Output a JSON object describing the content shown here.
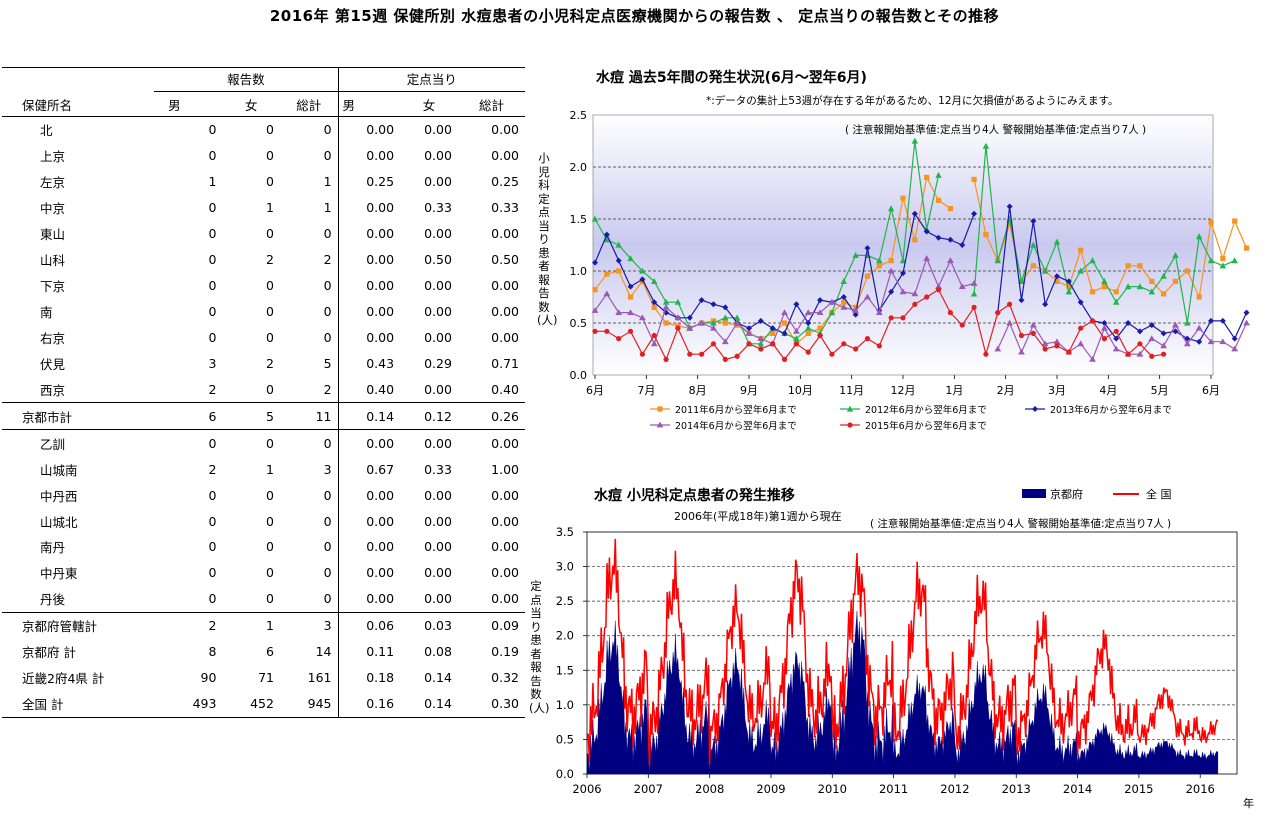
{
  "title": "2016年 第15週 保健所別 水痘患者の小児科定点医療機関からの報告数 、 定点当りの報告数とその推移",
  "table": {
    "group_reports": "報告数",
    "group_per_site": "定点当り",
    "col_name": "保健所名",
    "col_male": "男",
    "col_female": "女",
    "col_total": "総計",
    "col_male2": "男",
    "col_female2": "女",
    "col_total2": "総計",
    "rows": [
      {
        "name": "北",
        "m": "0",
        "f": "0",
        "t": "0",
        "pm": "0.00",
        "pf": "0.00",
        "pt": "0.00",
        "style": "indent"
      },
      {
        "name": "上京",
        "m": "0",
        "f": "0",
        "t": "0",
        "pm": "0.00",
        "pf": "0.00",
        "pt": "0.00",
        "style": "indent"
      },
      {
        "name": "左京",
        "m": "1",
        "f": "0",
        "t": "1",
        "pm": "0.25",
        "pf": "0.00",
        "pt": "0.25",
        "style": "indent"
      },
      {
        "name": "中京",
        "m": "0",
        "f": "1",
        "t": "1",
        "pm": "0.00",
        "pf": "0.33",
        "pt": "0.33",
        "style": "indent"
      },
      {
        "name": "東山",
        "m": "0",
        "f": "0",
        "t": "0",
        "pm": "0.00",
        "pf": "0.00",
        "pt": "0.00",
        "style": "indent"
      },
      {
        "name": "山科",
        "m": "0",
        "f": "2",
        "t": "2",
        "pm": "0.00",
        "pf": "0.50",
        "pt": "0.50",
        "style": "indent"
      },
      {
        "name": "下京",
        "m": "0",
        "f": "0",
        "t": "0",
        "pm": "0.00",
        "pf": "0.00",
        "pt": "0.00",
        "style": "indent"
      },
      {
        "name": "南",
        "m": "0",
        "f": "0",
        "t": "0",
        "pm": "0.00",
        "pf": "0.00",
        "pt": "0.00",
        "style": "indent"
      },
      {
        "name": "右京",
        "m": "0",
        "f": "0",
        "t": "0",
        "pm": "0.00",
        "pf": "0.00",
        "pt": "0.00",
        "style": "indent"
      },
      {
        "name": "伏見",
        "m": "3",
        "f": "2",
        "t": "5",
        "pm": "0.43",
        "pf": "0.29",
        "pt": "0.71",
        "style": "indent"
      },
      {
        "name": "西京",
        "m": "2",
        "f": "0",
        "t": "2",
        "pm": "0.40",
        "pf": "0.00",
        "pt": "0.40",
        "style": "indent"
      },
      {
        "name": "京都市計",
        "m": "6",
        "f": "5",
        "t": "11",
        "pm": "0.14",
        "pf": "0.12",
        "pt": "0.26",
        "style": "subtotal"
      },
      {
        "name": "乙訓",
        "m": "0",
        "f": "0",
        "t": "0",
        "pm": "0.00",
        "pf": "0.00",
        "pt": "0.00",
        "style": "indent"
      },
      {
        "name": "山城南",
        "m": "2",
        "f": "1",
        "t": "3",
        "pm": "0.67",
        "pf": "0.33",
        "pt": "1.00",
        "style": "indent"
      },
      {
        "name": "中丹西",
        "m": "0",
        "f": "0",
        "t": "0",
        "pm": "0.00",
        "pf": "0.00",
        "pt": "0.00",
        "style": "indent"
      },
      {
        "name": "山城北",
        "m": "0",
        "f": "0",
        "t": "0",
        "pm": "0.00",
        "pf": "0.00",
        "pt": "0.00",
        "style": "indent"
      },
      {
        "name": "南丹",
        "m": "0",
        "f": "0",
        "t": "0",
        "pm": "0.00",
        "pf": "0.00",
        "pt": "0.00",
        "style": "indent"
      },
      {
        "name": "中丹東",
        "m": "0",
        "f": "0",
        "t": "0",
        "pm": "0.00",
        "pf": "0.00",
        "pt": "0.00",
        "style": "indent"
      },
      {
        "name": "丹後",
        "m": "0",
        "f": "0",
        "t": "0",
        "pm": "0.00",
        "pf": "0.00",
        "pt": "0.00",
        "style": "indent"
      },
      {
        "name": "京都府管轄計",
        "m": "2",
        "f": "1",
        "t": "3",
        "pm": "0.06",
        "pf": "0.03",
        "pt": "0.09",
        "style": "subtotal"
      },
      {
        "name": "京都府  計",
        "m": "8",
        "f": "6",
        "t": "14",
        "pm": "0.11",
        "pf": "0.08",
        "pt": "0.19",
        "style": "total"
      },
      {
        "name": "近畿2府4県  計",
        "m": "90",
        "f": "71",
        "t": "161",
        "pm": "0.18",
        "pf": "0.14",
        "pt": "0.32",
        "style": "total"
      },
      {
        "name": "全国  計",
        "m": "493",
        "f": "452",
        "t": "945",
        "pm": "0.16",
        "pf": "0.14",
        "pt": "0.30",
        "style": "last"
      }
    ]
  },
  "chart1": {
    "title": "水痘  過去5年間の発生状況(6月～翌年6月)",
    "note": "*:データの集計上53週が存在する年があるため、12月に欠損値があるようにみえます。",
    "thresholds": "( 注意報開始基準値:定点当り4人    警報開始基準値:定点当り7人 )",
    "ylabel": "小児科定点当り患者報告数(人)",
    "yticks": [
      "0.0",
      "0.5",
      "1.0",
      "1.5",
      "2.0",
      "2.5"
    ],
    "xticks": [
      "6月",
      "7月",
      "8月",
      "9月",
      "10月",
      "11月",
      "12月",
      "1月",
      "2月",
      "3月",
      "4月",
      "5月",
      "6月"
    ],
    "legend": [
      "2011年6月から翌年6月まで",
      "2012年6月から翌年6月まで",
      "2013年6月から翌年6月まで",
      "2014年6月から翌年6月まで",
      "2015年6月から翌年6月まで"
    ]
  },
  "chart2": {
    "title": "水痘  小児科定点患者の発生推移",
    "subtitle": "2006年(平成18年)第1週から現在",
    "thresholds": "( 注意報開始基準値:定点当り4人    警報開始基準値:定点当り7人 )",
    "legend_kyoto": "京都府",
    "legend_national": "全  国",
    "ylabel": "定点当り患者報告数(人)",
    "yticks": [
      "0.0",
      "0.5",
      "1.0",
      "1.5",
      "2.0",
      "2.5",
      "3.0",
      "3.5"
    ],
    "xticks": [
      "2006",
      "2007",
      "2008",
      "2009",
      "2010",
      "2011",
      "2012",
      "2013",
      "2014",
      "2015",
      "2016"
    ],
    "xunit": "年"
  },
  "colors": {
    "c2011": "#f7931e",
    "c2012": "#1fb54a",
    "c2013": "#1a1aa8",
    "c2014": "#9b59b6",
    "c2015": "#e02020",
    "kyoto": "#000080",
    "national": "#ff0000"
  },
  "chart_data": [
    {
      "type": "line",
      "title": "水痘  過去5年間の発生状況(6月～翌年6月)",
      "ylabel": "小児科定点当り患者報告数(人)",
      "ylim": [
        0,
        2.5
      ],
      "x_label": "week (6月 start, 53 points)",
      "grid": true,
      "series": [
        {
          "name": "2011年6月から翌年6月まで",
          "values": [
            0.82,
            0.97,
            1.0,
            0.75,
            0.9,
            0.65,
            0.5,
            0.47,
            0.45,
            0.5,
            0.52,
            0.5,
            0.48,
            0.4,
            0.35,
            0.4,
            0.5,
            0.3,
            0.4,
            0.45,
            0.6,
            0.7,
            0.65,
            0.95,
            1.05,
            1.1,
            1.7,
            1.3,
            1.9,
            1.68,
            1.6,
            null,
            1.88,
            1.35,
            1.1,
            1.45,
            0.9,
            1.05,
            1.0,
            0.9,
            0.85,
            1.2,
            0.8,
            0.85,
            0.8,
            1.05,
            1.05,
            0.9,
            0.78,
            0.9,
            1.0,
            0.75,
            1.47,
            1.12,
            1.48,
            1.22
          ]
        },
        {
          "name": "2012年6月から翌年6月まで",
          "values": [
            1.5,
            1.3,
            1.25,
            1.12,
            1.0,
            0.9,
            0.7,
            0.7,
            0.45,
            0.5,
            0.5,
            0.55,
            0.55,
            0.3,
            0.3,
            0.45,
            0.4,
            0.35,
            0.45,
            0.4,
            0.6,
            0.9,
            1.15,
            1.15,
            1.1,
            1.6,
            1.1,
            2.25,
            1.4,
            1.92,
            null,
            null,
            0.78,
            2.2,
            1.1,
            1.5,
            0.9,
            1.25,
            1.0,
            1.28,
            0.8,
            1.0,
            1.1,
            0.9,
            0.7,
            0.85,
            0.85,
            0.8,
            0.95,
            1.15,
            0.5,
            1.33,
            1.1,
            1.05,
            1.1
          ]
        },
        {
          "name": "2013年6月から翌年6月まで",
          "values": [
            1.08,
            1.35,
            1.1,
            0.85,
            0.92,
            0.7,
            0.6,
            0.55,
            0.55,
            0.72,
            0.68,
            0.65,
            0.5,
            0.45,
            0.52,
            0.45,
            0.4,
            0.68,
            0.5,
            0.72,
            0.7,
            0.75,
            0.58,
            1.22,
            0.62,
            0.8,
            0.98,
            1.55,
            1.38,
            1.32,
            1.3,
            1.25,
            1.55,
            null,
            0.6,
            1.62,
            0.72,
            1.48,
            0.68,
            0.95,
            0.9,
            0.7,
            0.52,
            0.5,
            0.35,
            0.5,
            0.42,
            0.48,
            0.4,
            0.42,
            0.35,
            0.32,
            0.52,
            0.52,
            0.35,
            0.6
          ]
        },
        {
          "name": "2014年6月から翌年6月まで",
          "values": [
            0.62,
            0.78,
            0.6,
            0.6,
            0.55,
            0.3,
            0.65,
            0.55,
            0.45,
            0.5,
            0.45,
            0.32,
            0.5,
            0.4,
            0.35,
            0.3,
            0.6,
            0.42,
            0.6,
            0.6,
            0.7,
            0.65,
            0.62,
            0.75,
            0.6,
            1.0,
            0.8,
            0.78,
            1.12,
            0.85,
            1.1,
            0.85,
            0.88,
            null,
            0.25,
            0.5,
            0.22,
            0.48,
            0.3,
            0.32,
            0.22,
            0.3,
            0.15,
            0.45,
            0.25,
            0.2,
            0.2,
            0.35,
            0.28,
            0.48,
            0.3,
            0.45,
            0.32,
            0.32,
            0.25,
            0.5
          ]
        },
        {
          "name": "2015年6月から翌年6月まで",
          "values": [
            0.42,
            0.42,
            0.35,
            0.42,
            0.2,
            0.38,
            0.15,
            0.45,
            0.2,
            0.2,
            0.3,
            0.15,
            0.18,
            0.3,
            0.25,
            0.3,
            0.15,
            0.3,
            0.22,
            0.38,
            0.2,
            0.3,
            0.25,
            0.35,
            0.28,
            0.55,
            0.55,
            0.68,
            0.75,
            0.82,
            0.6,
            0.48,
            0.65,
            0.2,
            0.6,
            0.68,
            0.38,
            0.4,
            0.25,
            0.28,
            0.22,
            0.45,
            0.52,
            0.35,
            0.42,
            0.2,
            0.3,
            0.18,
            0.2
          ]
        }
      ]
    },
    {
      "type": "area",
      "title": "水痘  小児科定点患者の発生推移",
      "subtitle": "2006年(平成18年)第1週から現在",
      "ylabel": "定点当り患者報告数(人)",
      "ylim": [
        0,
        3.5
      ],
      "x_range": [
        "2006",
        "2016 week 15"
      ],
      "grid": true,
      "series": [
        {
          "name": "京都府",
          "kind": "area",
          "annual_peak_values": [
            1.9,
            1.7,
            1.55,
            1.6,
            2.1,
            1.25,
            1.45,
            1.15,
            0.65,
            0.45,
            0.35
          ]
        },
        {
          "name": "全  国",
          "kind": "line",
          "annual_peak_values": [
            3.15,
            2.85,
            2.45,
            2.95,
            3.0,
            2.82,
            2.68,
            2.15,
            1.9,
            1.15,
            0.85
          ]
        }
      ]
    }
  ]
}
